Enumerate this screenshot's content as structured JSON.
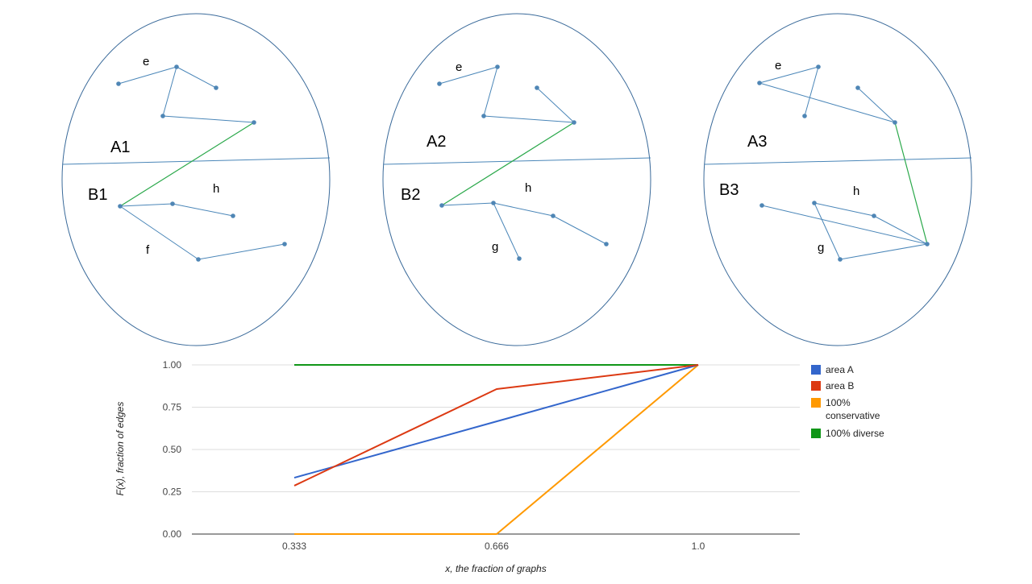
{
  "panels": [
    {
      "area_a_label": "A1",
      "area_b_label": "B1",
      "labels": [
        "e",
        "h",
        "f"
      ]
    },
    {
      "area_a_label": "A2",
      "area_b_label": "B2",
      "labels": [
        "e",
        "h",
        "g"
      ]
    },
    {
      "area_a_label": "A3",
      "area_b_label": "B3",
      "labels": [
        "e",
        "h",
        "g"
      ]
    }
  ],
  "colors": {
    "outline": "#3a6a9a",
    "edge": "#4a86b8",
    "node": "#4f86b5",
    "cross_edge": "#2aa84a"
  },
  "chart_data": {
    "type": "line",
    "x": [
      0.333,
      0.666,
      1.0
    ],
    "x_tick_labels": [
      "0.333",
      "0.666",
      "1.0"
    ],
    "y_tick_labels": [
      "0.00",
      "0.25",
      "0.50",
      "0.75",
      "1.00"
    ],
    "ylim": [
      0,
      1
    ],
    "xlabel": "x, the fraction of graphs",
    "ylabel": "F(x), fraction of edges",
    "legend_position": "right",
    "grid": true,
    "series": [
      {
        "name": "area A",
        "color": "#3366cc",
        "values": [
          0.333,
          0.666,
          1.0
        ]
      },
      {
        "name": "area B",
        "color": "#dc3912",
        "values": [
          0.286,
          0.857,
          1.0
        ]
      },
      {
        "name": "100% conservative",
        "color": "#ff9900",
        "values": [
          0.0,
          0.0,
          1.0
        ]
      },
      {
        "name": "100% diverse",
        "color": "#109618",
        "values": [
          1.0,
          1.0,
          1.0
        ]
      }
    ]
  }
}
